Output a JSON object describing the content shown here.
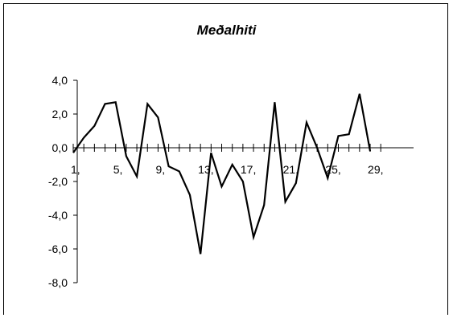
{
  "chart_data": {
    "type": "line",
    "title": "Meðalhiti",
    "xlabel": "",
    "ylabel": "",
    "ylim": [
      -8,
      4
    ],
    "y_ticks": [
      4,
      2,
      0,
      -2,
      -4,
      -6,
      -8
    ],
    "y_tick_labels": [
      "4,0",
      "2,0",
      "0,0",
      "-2,0",
      "-4,0",
      "-6,0",
      "-8,0"
    ],
    "x_tick_labels": [
      {
        "x": 1,
        "label": "1,"
      },
      {
        "x": 5,
        "label": "5,"
      },
      {
        "x": 9,
        "label": "9,"
      },
      {
        "x": 13,
        "label": "13,"
      },
      {
        "x": 17,
        "label": "17,"
      },
      {
        "x": 21,
        "label": "21,"
      },
      {
        "x": 25,
        "label": "25,"
      },
      {
        "x": 29,
        "label": "29,"
      }
    ],
    "x": [
      1,
      2,
      3,
      4,
      5,
      6,
      7,
      8,
      9,
      10,
      11,
      12,
      13,
      14,
      15,
      16,
      17,
      18,
      19,
      20,
      21,
      22,
      23,
      24,
      25,
      26,
      27,
      28,
      29
    ],
    "values": [
      -0.3,
      0.6,
      1.3,
      2.6,
      2.7,
      -0.5,
      -1.7,
      2.6,
      1.8,
      -1.1,
      -1.4,
      -2.8,
      -6.3,
      -0.3,
      -2.3,
      -1.0,
      -2.0,
      -5.3,
      -3.4,
      2.7,
      -3.2,
      -2.1,
      1.5,
      0.0,
      -1.8,
      0.7,
      0.8,
      3.2,
      -0.2
    ],
    "line_color": "#000000",
    "grid": false,
    "legend": "none"
  }
}
